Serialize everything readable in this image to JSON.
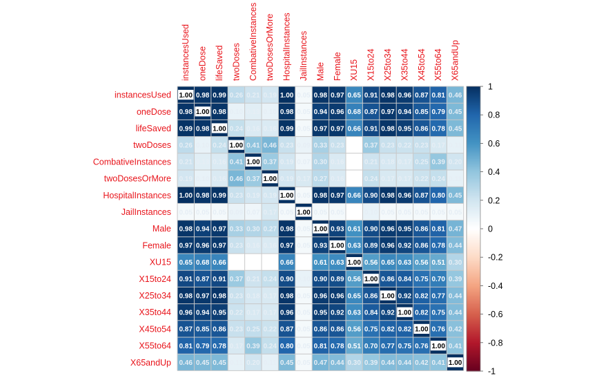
{
  "chart_data": {
    "type": "heatmap",
    "title": "",
    "labels": [
      "instancesUsed",
      "oneDose",
      "lifeSaved",
      "twoDoses",
      "CombativeInstances",
      "twoDosesOrMore",
      "HospitalInstances",
      "JailInstances",
      "Male",
      "Female",
      "XU15",
      "X15to24",
      "X25to34",
      "X35to44",
      "X45to54",
      "X55to64",
      "X65andUp"
    ],
    "matrix": [
      [
        1.0,
        0.98,
        0.99,
        0.26,
        0.21,
        0.19,
        1.0,
        0.05,
        0.98,
        0.97,
        0.65,
        0.91,
        0.98,
        0.96,
        0.87,
        0.81,
        0.46
      ],
      [
        0.98,
        1.0,
        0.98,
        0.1,
        0.13,
        0.1,
        0.98,
        0.05,
        0.94,
        0.96,
        0.68,
        0.87,
        0.97,
        0.94,
        0.85,
        0.79,
        0.45
      ],
      [
        0.99,
        0.98,
        1.0,
        0.24,
        0.16,
        0.16,
        0.99,
        0.05,
        0.97,
        0.97,
        0.66,
        0.91,
        0.98,
        0.95,
        0.86,
        0.78,
        0.45
      ],
      [
        0.26,
        0.1,
        0.24,
        1.0,
        0.41,
        0.46,
        0.23,
        0.09,
        0.33,
        0.23,
        null,
        0.37,
        0.23,
        0.22,
        0.23,
        0.17,
        0.11
      ],
      [
        0.21,
        0.13,
        0.16,
        0.41,
        1.0,
        0.37,
        0.19,
        0.07,
        0.3,
        0.16,
        null,
        0.21,
        0.18,
        0.17,
        0.25,
        0.39,
        0.2
      ],
      [
        0.19,
        0.1,
        0.16,
        0.46,
        0.37,
        1.0,
        0.19,
        0.17,
        0.27,
        0.16,
        null,
        0.24,
        0.17,
        0.17,
        0.22,
        0.24,
        0.11
      ],
      [
        1.0,
        0.98,
        0.99,
        0.23,
        0.19,
        0.19,
        1.0,
        0.05,
        0.98,
        0.97,
        0.66,
        0.9,
        0.98,
        0.96,
        0.87,
        0.8,
        0.45
      ],
      [
        0.05,
        0.05,
        0.05,
        0.09,
        0.07,
        0.17,
        0.05,
        1.0,
        0.05,
        0.05,
        null,
        0.1,
        0.05,
        0.05,
        0.05,
        0.05,
        0.05
      ],
      [
        0.98,
        0.94,
        0.97,
        0.33,
        0.3,
        0.27,
        0.98,
        0.05,
        1.0,
        0.93,
        0.61,
        0.9,
        0.96,
        0.95,
        0.86,
        0.81,
        0.47
      ],
      [
        0.97,
        0.96,
        0.97,
        0.23,
        0.16,
        0.16,
        0.97,
        0.05,
        0.93,
        1.0,
        0.63,
        0.89,
        0.96,
        0.92,
        0.86,
        0.78,
        0.44
      ],
      [
        0.65,
        0.68,
        0.66,
        null,
        null,
        null,
        0.66,
        null,
        0.61,
        0.63,
        1.0,
        0.56,
        0.65,
        0.63,
        0.56,
        0.51,
        0.3
      ],
      [
        0.91,
        0.87,
        0.91,
        0.37,
        0.21,
        0.24,
        0.9,
        0.1,
        0.9,
        0.89,
        0.56,
        1.0,
        0.86,
        0.84,
        0.75,
        0.7,
        0.39
      ],
      [
        0.98,
        0.97,
        0.98,
        0.23,
        0.18,
        0.17,
        0.98,
        0.05,
        0.96,
        0.96,
        0.65,
        0.86,
        1.0,
        0.92,
        0.82,
        0.77,
        0.44
      ],
      [
        0.96,
        0.94,
        0.95,
        0.22,
        0.17,
        0.17,
        0.96,
        0.05,
        0.95,
        0.92,
        0.63,
        0.84,
        0.92,
        1.0,
        0.82,
        0.75,
        0.44
      ],
      [
        0.87,
        0.85,
        0.86,
        0.23,
        0.25,
        0.22,
        0.87,
        0.05,
        0.86,
        0.86,
        0.56,
        0.75,
        0.82,
        0.82,
        1.0,
        0.76,
        0.42
      ],
      [
        0.81,
        0.79,
        0.78,
        0.17,
        0.39,
        0.24,
        0.8,
        0.05,
        0.81,
        0.78,
        0.51,
        0.7,
        0.77,
        0.75,
        0.76,
        1.0,
        0.41
      ],
      [
        0.46,
        0.45,
        0.45,
        0.11,
        0.2,
        0.11,
        0.45,
        0.05,
        0.47,
        0.44,
        0.3,
        0.39,
        0.44,
        0.44,
        0.42,
        0.41,
        1.0
      ]
    ],
    "colorbar": {
      "ticks": [
        "1",
        "0.8",
        "0.6",
        "0.4",
        "0.2",
        "0",
        "-0.2",
        "-0.4",
        "-0.6",
        "-0.8",
        "-1"
      ],
      "range": [
        -1,
        1
      ]
    },
    "colors": {
      "label_text": "#e8141b",
      "grid": "#c8c8c8",
      "strong_positive": "#053061",
      "neutral": "#f7f7f7",
      "strong_negative": "#67001f"
    }
  }
}
